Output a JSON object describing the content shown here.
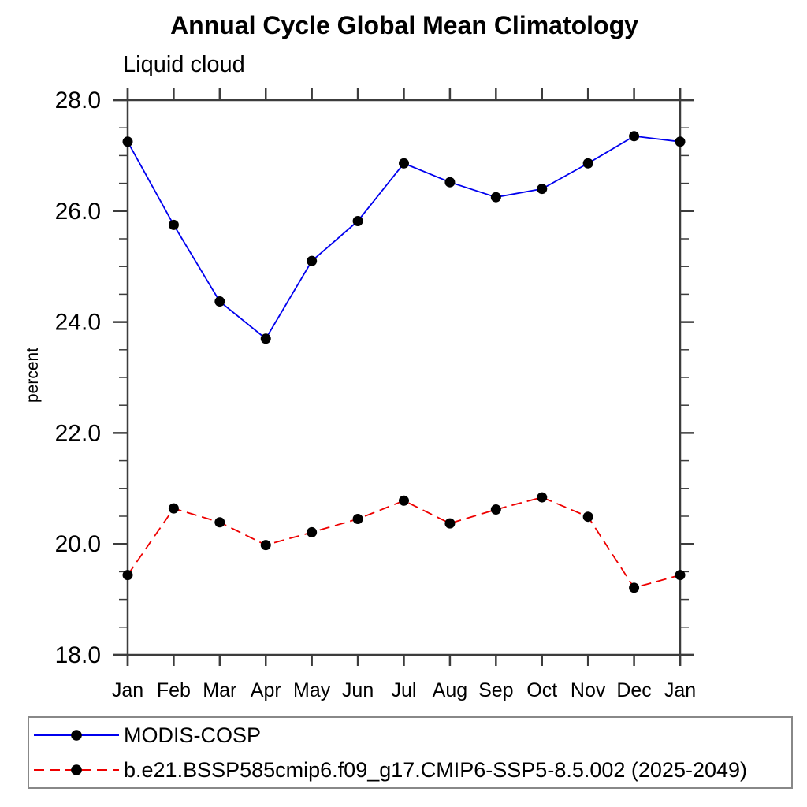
{
  "page": {
    "background": "#ffffff"
  },
  "chart_data": {
    "type": "line",
    "title": "Annual Cycle Global Mean Climatology",
    "subtitle": "Liquid cloud",
    "xlabel": "",
    "ylabel": "percent",
    "categories": [
      "Jan",
      "Feb",
      "Mar",
      "Apr",
      "May",
      "Jun",
      "Jul",
      "Aug",
      "Sep",
      "Oct",
      "Nov",
      "Dec",
      "Jan"
    ],
    "ylim": [
      18.0,
      28.0
    ],
    "y_major_step": 2.0,
    "y_minor_step": 0.5,
    "y_tick_labels": [
      "18.0",
      "20.0",
      "22.0",
      "24.0",
      "26.0",
      "28.0"
    ],
    "grid": false,
    "legend_position": "bottom-left-box",
    "axis_color": "#3c3c3c",
    "marker_color": "#000000",
    "series": [
      {
        "name": "MODIS-COSP",
        "color": "#0000ee",
        "line_style": "solid",
        "marker": "filled-circle",
        "values": [
          27.25,
          25.75,
          24.37,
          23.7,
          25.1,
          25.82,
          26.86,
          26.52,
          26.25,
          26.4,
          26.86,
          27.35,
          27.25
        ]
      },
      {
        "name": "b.e21.BSSP585cmip6.f09_g17.CMIP6-SSP5-8.5.002 (2025-2049)",
        "color": "#ee0000",
        "line_style": "dashed",
        "marker": "filled-circle",
        "values": [
          19.44,
          20.64,
          20.39,
          19.98,
          20.21,
          20.45,
          20.78,
          20.37,
          20.62,
          20.84,
          20.49,
          19.21,
          19.44
        ]
      }
    ]
  }
}
